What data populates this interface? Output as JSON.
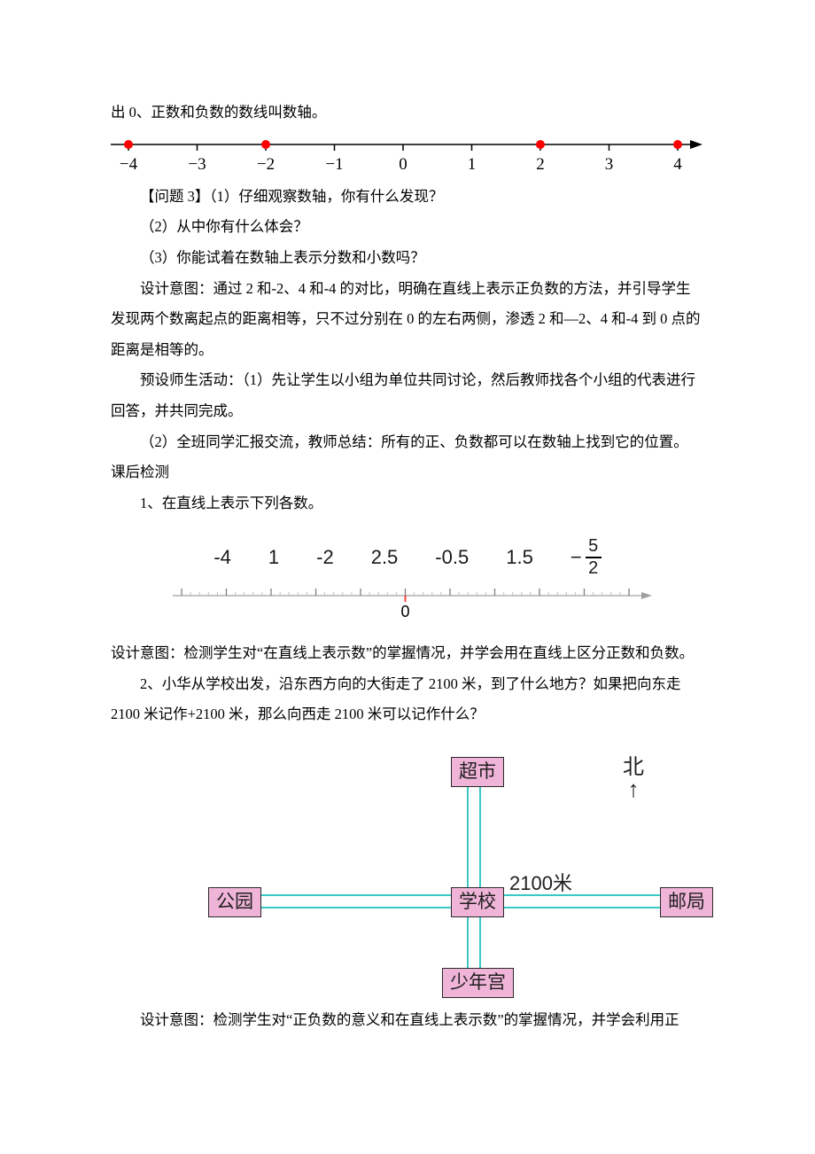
{
  "colors": {
    "red_dot": "#ff0000",
    "pink_box": "#efb4d7",
    "teal": "#39c8c4",
    "text": "#000000",
    "gray_text": "#808080",
    "dark_text": "#1a1a1a"
  },
  "p_top": "出 0、正数和负数的数线叫数轴。",
  "numline1": {
    "labels": [
      "-4",
      "-3",
      "-2",
      "-1",
      "0",
      "1",
      "2",
      "3",
      "4"
    ],
    "label_fontsize": 19,
    "label_font": "KaiTi, 楷体, serif",
    "tick_color": "#000000",
    "axis_color": "#000000",
    "dots_at": [
      -4,
      -2,
      2,
      4
    ],
    "range": [
      -4.5,
      4.5
    ]
  },
  "q3": {
    "title": "【问题 3】（1）仔细观察数轴，你有什么发现？",
    "q2": "（2）从中你有什么体会？",
    "q3": "（3）你能试着在数轴上表示分数和小数吗？"
  },
  "design1": "设计意图：通过 2 和-2、4 和-4 的对比，明确在直线上表示正负数的方法，并引导学生发现两个数离起点的距离相等，只不过分别在 0 的左右两侧，渗透 2 和—2、4 和-4 到 0 点的距离是相等的。",
  "preset_label": "预设师生活动：",
  "preset_1": "（1）先让学生以小组为单位共同讨论，然后教师找各个小组的代表进行回答，并共同完成。",
  "preset_2": "（2）全班同学汇报交流，教师总结：所有的正、负数都可以在数轴上找到它的位置。",
  "aftercheck": "课后检测",
  "item1": "1、在直线上表示下列各数。",
  "ex1_values": [
    "-4",
    "1",
    "-2",
    "2.5",
    "-0.5",
    "1.5"
  ],
  "ex1_fraction": {
    "neg": "−",
    "num": "5",
    "den": "2"
  },
  "numline2": {
    "zero_label": "0",
    "range": [
      -5,
      5
    ],
    "tick_color_major": "#808080",
    "tick_color_minor": "#c0c0c0",
    "axis_color": "#a0a0a0",
    "zero_marker_color": "#ff4040"
  },
  "design2": "设计意图：检测学生对“在直线上表示数”的掌握情况，并学会用在直线上区分正数和负数。",
  "item2": "2、小华从学校出发，沿东西方向的大街走了 2100 米，到了什么地方？如果把向东走 2100 米记作+2100 米，那么向西走 2100 米可以记作什么？",
  "map": {
    "places": {
      "supermarket": "超市",
      "park": "公园",
      "school": "学校",
      "post": "邮局",
      "youth": "少年宫"
    },
    "distance_label": "2100米",
    "north_label": "北",
    "north_arrow": "↑"
  },
  "design3": "设计意图：检测学生对“正负数的意义和在直线上表示数”的掌握情况，并学会利用正"
}
